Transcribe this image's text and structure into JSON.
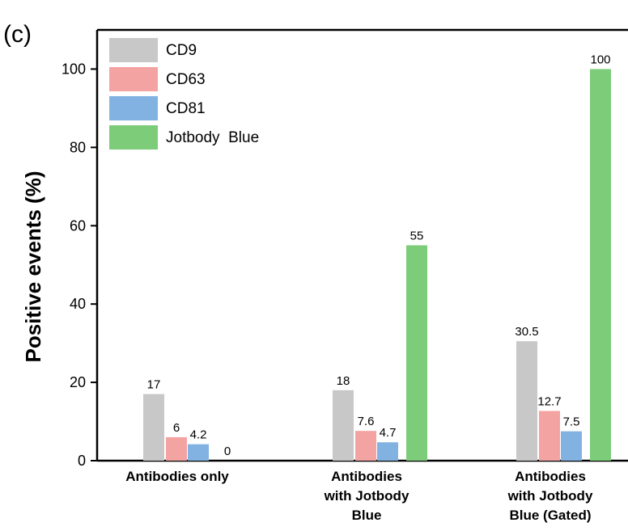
{
  "chart_data": {
    "type": "bar",
    "panel_label": "(c)",
    "ylabel": "Positive events (%)",
    "categories": [
      "Antibodies  only",
      "Antibodies\nwith Jotbody\nBlue",
      "Antibodies\nwith Jotbody\nBlue (Gated)"
    ],
    "series": [
      {
        "name": "CD9",
        "color": "#c8c8c8",
        "values": [
          17,
          18,
          30.5
        ]
      },
      {
        "name": "CD63",
        "color": "#f4a3a3",
        "values": [
          6,
          7.6,
          12.7
        ]
      },
      {
        "name": "CD81",
        "color": "#82b2e2",
        "values": [
          4.2,
          4.7,
          7.5
        ]
      },
      {
        "name": "Jotbody  Blue",
        "color": "#7dcc7a",
        "values": [
          0,
          55,
          100
        ]
      }
    ],
    "ylim": [
      0,
      110
    ],
    "yticks": [
      0,
      20,
      40,
      60,
      80,
      100
    ],
    "legend": "top-left"
  }
}
